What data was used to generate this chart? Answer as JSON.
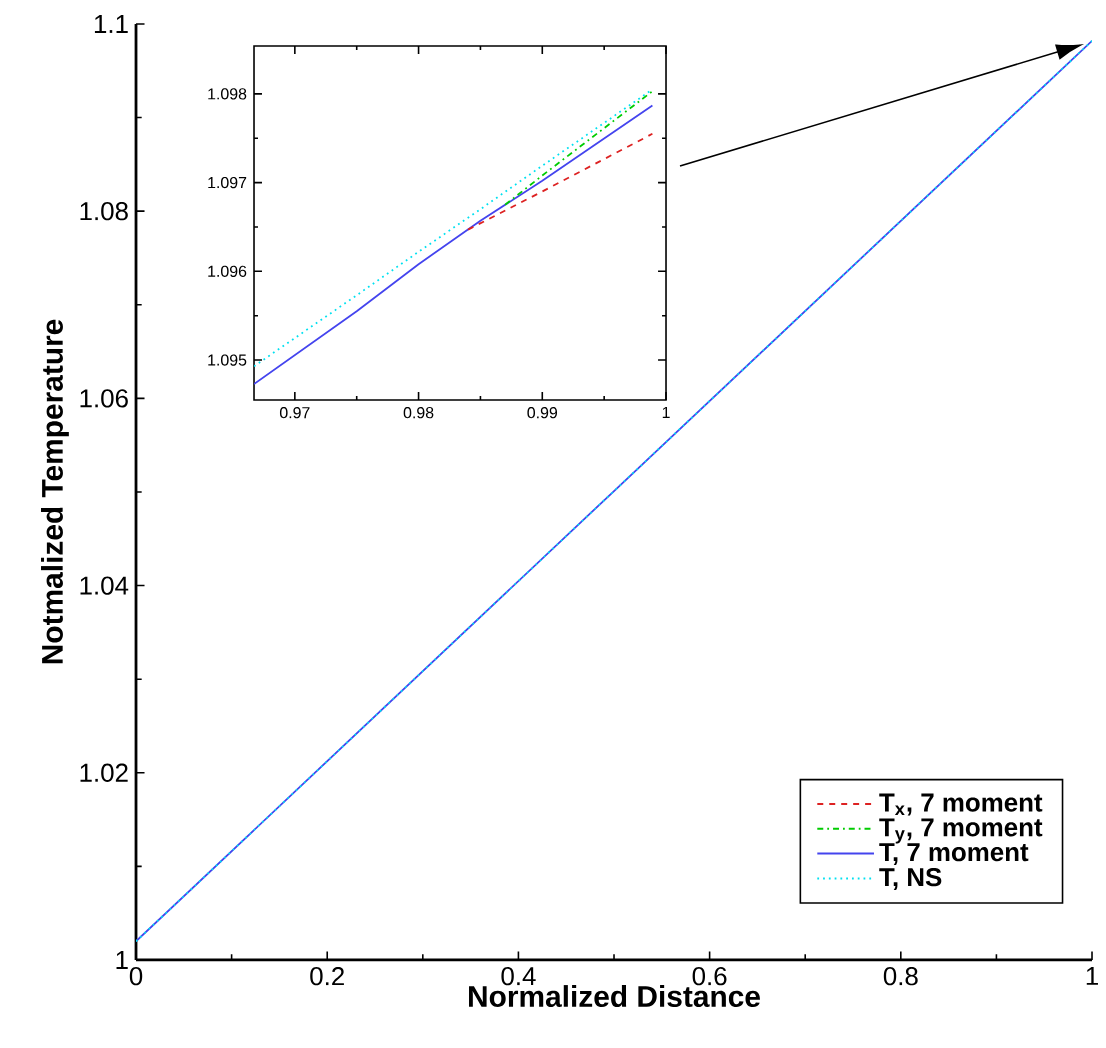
{
  "chart_data": [
    {
      "type": "line",
      "xlabel": "Normalized Distance",
      "ylabel": "Notmalized Temperature",
      "xlim": [
        0,
        1
      ],
      "ylim": [
        1,
        1.1
      ],
      "xticks": [
        0,
        0.2,
        0.4,
        0.6,
        0.8,
        1
      ],
      "yticks": [
        1,
        1.02,
        1.04,
        1.06,
        1.08,
        1.1
      ],
      "legend": "bottom right",
      "series": [
        {
          "name": "T$_{x}$, 7 moment",
          "color": "#dd2222",
          "line_style": "dashed"
        },
        {
          "name": "T$_{y}$, 7 moment",
          "color": "#00cc00",
          "line_style": "dashdot"
        },
        {
          "name": "T, 7 moment",
          "color": "#4444ee",
          "line_style": "solid",
          "x": [
            0,
            0.5,
            1
          ],
          "values": [
            1.002,
            1.0501,
            1.0982
          ]
        },
        {
          "name": "T, NS",
          "color": "#00e0f0",
          "line_style": "dotted",
          "x": [
            0,
            0.5,
            1
          ],
          "values": [
            1.002,
            1.0501,
            1.0982
          ]
        }
      ]
    },
    {
      "type": "line",
      "xlim": [
        0.9667,
        1
      ],
      "ylim": [
        1.09455,
        1.09854
      ],
      "xticks": [
        0.97,
        0.98,
        0.99,
        1
      ],
      "yticks": [
        1.095,
        1.096,
        1.097,
        1.098
      ],
      "series": [
        {
          "color": "#dd2222",
          "line_style": "dashed",
          "x": [
            0.984,
            0.99,
            0.9989
          ],
          "values": [
            1.09647,
            1.0969,
            1.09755
          ]
        },
        {
          "color": "#00cc00",
          "line_style": "dashdot",
          "x": [
            0.987,
            0.99,
            0.9989
          ],
          "values": [
            1.09675,
            1.09708,
            1.09803
          ]
        },
        {
          "color": "#4444ee",
          "line_style": "solid",
          "x": [
            0.9667,
            0.975,
            0.98,
            0.985,
            0.99,
            0.9989
          ],
          "values": [
            1.09473,
            1.09555,
            1.09608,
            1.09657,
            1.09702,
            1.09787
          ]
        },
        {
          "color": "#00e0f0",
          "line_style": "dotted",
          "x": [
            0.9667,
            0.975,
            0.98,
            0.985,
            0.99,
            0.9989
          ],
          "values": [
            1.09493,
            1.09573,
            1.09622,
            1.0967,
            1.09719,
            1.09805
          ]
        }
      ]
    }
  ]
}
